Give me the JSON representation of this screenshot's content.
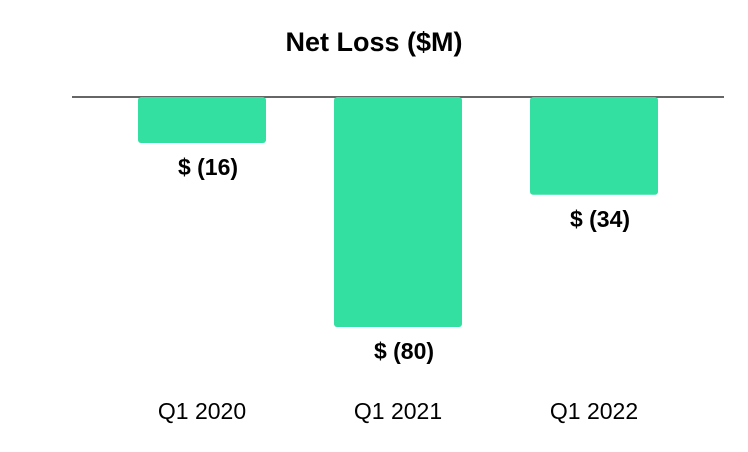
{
  "chart_data": {
    "type": "bar",
    "title": "Net Loss ($M)",
    "categories": [
      "Q1 2020",
      "Q1 2021",
      "Q1 2022"
    ],
    "values": [
      -16,
      -80,
      -34
    ],
    "value_labels": [
      "$ (16)",
      "$ (80)",
      "$ (34)"
    ],
    "color": "#34e0a1"
  }
}
